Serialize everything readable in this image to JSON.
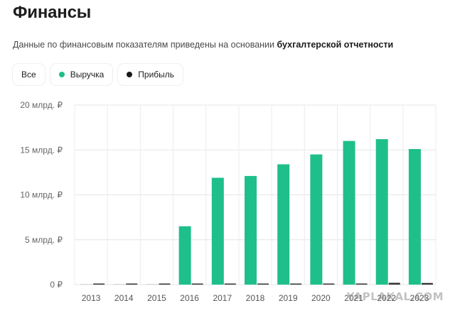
{
  "page": {
    "title": "Финансы",
    "subtitle_prefix": "Данные по финансовым показателям приведены на основании",
    "subtitle_link": "бухгалтерской отчетности",
    "watermark": "YAPLAKAL.COM"
  },
  "filters": [
    {
      "label": "Все",
      "color": null
    },
    {
      "label": "Выручка",
      "color": "#1fbf8b"
    },
    {
      "label": "Прибыль",
      "color": "#1a1a1a"
    }
  ],
  "chart_data": {
    "type": "bar",
    "categories": [
      "2013",
      "2014",
      "2015",
      "2016",
      "2017",
      "2018",
      "2019",
      "2020",
      "2021",
      "2022",
      "2023"
    ],
    "series": [
      {
        "name": "Выручка",
        "color": "#1fbf8b",
        "values": [
          0,
          0,
          0,
          6.5,
          11.9,
          12.1,
          13.4,
          14.5,
          16.0,
          16.2,
          15.1
        ]
      },
      {
        "name": "Прибыль",
        "color": "#333333",
        "values": [
          0.02,
          0.02,
          0.03,
          0.08,
          0.05,
          0.07,
          0.1,
          0.1,
          0.12,
          0.2,
          0.18
        ]
      }
    ],
    "yticks": [
      "0 ₽",
      "5 млрд. ₽",
      "10 млрд. ₽",
      "15 млрд. ₽",
      "20 млрд. ₽"
    ],
    "ylim": [
      0,
      20
    ],
    "ytick_values": [
      0,
      5,
      10,
      15,
      20
    ],
    "grid": true,
    "title": "",
    "xlabel": "",
    "ylabel": ""
  }
}
